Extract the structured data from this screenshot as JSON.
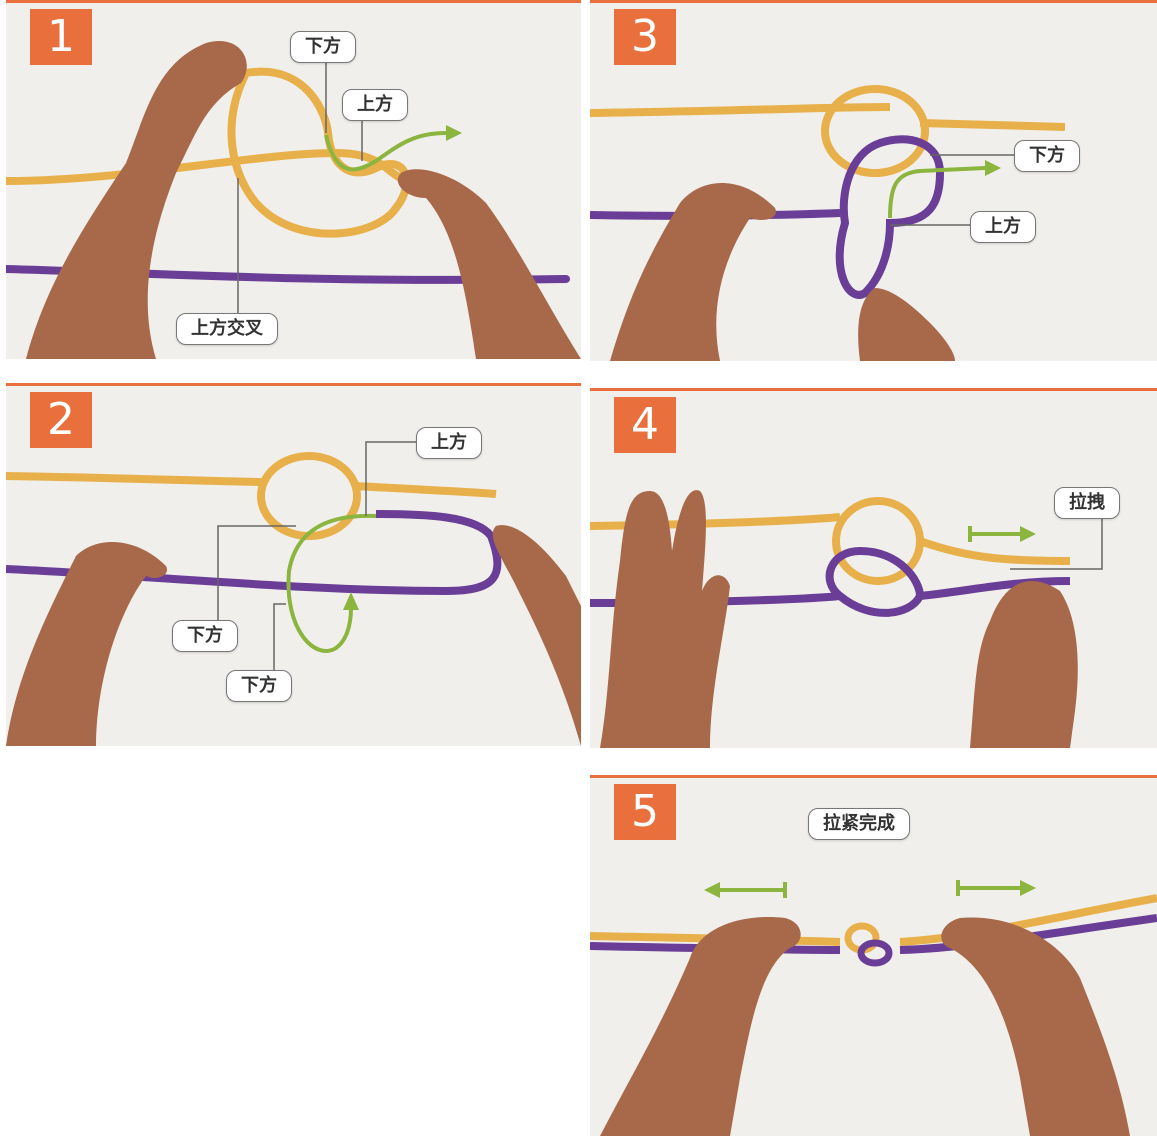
{
  "colors": {
    "accent": "#e9703c",
    "rope_yellow": "#e8b04a",
    "rope_purple": "#6a3d97",
    "arrow_green": "#8bb53e"
  },
  "panels": [
    {
      "step": "1",
      "labels": {
        "under": "下方",
        "over": "上方",
        "cross_over": "上方交叉"
      }
    },
    {
      "step": "2",
      "labels": {
        "over": "上方",
        "under_a": "下方",
        "under_b": "下方"
      }
    },
    {
      "step": "3",
      "labels": {
        "under": "下方",
        "over": "上方"
      }
    },
    {
      "step": "4",
      "labels": {
        "pull": "拉拽"
      }
    },
    {
      "step": "5",
      "labels": {
        "done": "拉紧完成"
      }
    }
  ]
}
